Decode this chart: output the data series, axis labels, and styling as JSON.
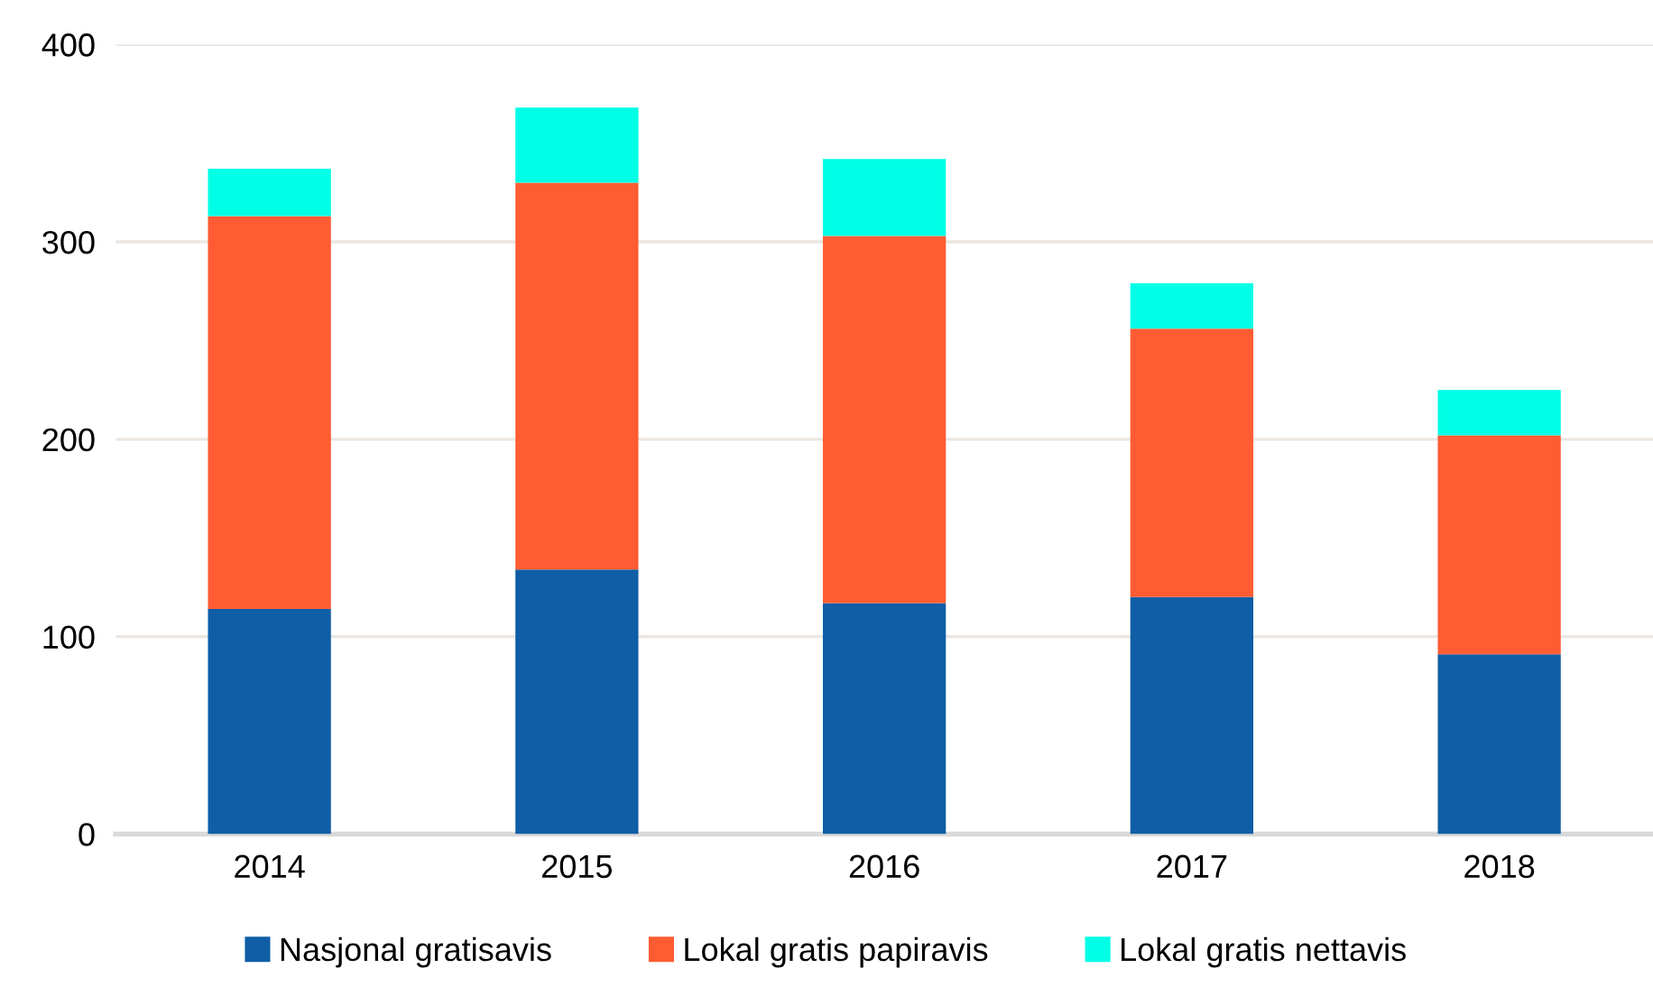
{
  "chart_data": {
    "type": "bar",
    "stacked": true,
    "categories": [
      "2014",
      "2015",
      "2016",
      "2017",
      "2018"
    ],
    "series": [
      {
        "name": "Nasjonal gratisavis",
        "color": "#0f5ea6",
        "values": [
          114,
          134,
          117,
          120,
          91
        ]
      },
      {
        "name": "Lokal gratis papiravis",
        "color": "#ff5c33",
        "values": [
          199,
          196,
          186,
          136,
          111
        ]
      },
      {
        "name": "Lokal gratis nettavis",
        "color": "#00ffe6",
        "values": [
          24,
          38,
          39,
          23,
          23
        ]
      }
    ],
    "ylim": [
      0,
      400
    ],
    "yticks": [
      0,
      100,
      200,
      300,
      400
    ],
    "grid": "y",
    "legend": "bottom"
  }
}
